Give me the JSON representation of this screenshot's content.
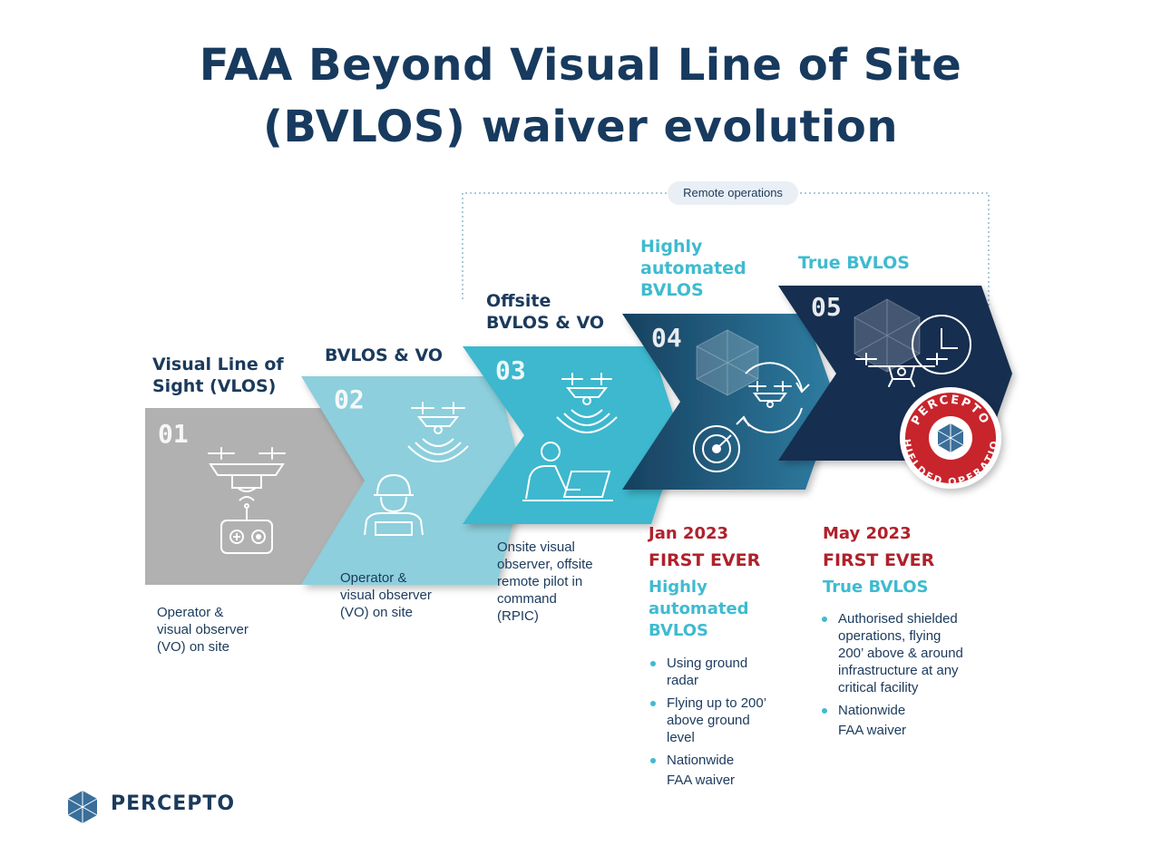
{
  "title": {
    "line1": "FAA Beyond Visual Line of Site",
    "line2": "(BVLOS) waiver evolution"
  },
  "remote_ops_label": "Remote operations",
  "steps": [
    {
      "number": "01",
      "label_lines": [
        "Visual Line of",
        "Sight (VLOS)"
      ],
      "description_lines": [
        "Operator &",
        "visual observer",
        "(VO) on site"
      ],
      "color": "#b1b1b1"
    },
    {
      "number": "02",
      "label_lines": [
        "BVLOS & VO"
      ],
      "description_lines": [
        "Operator &",
        "visual observer",
        "(VO) on site"
      ],
      "color": "#8dcfdc"
    },
    {
      "number": "03",
      "label_lines": [
        "Offsite",
        "BVLOS & VO"
      ],
      "description_lines": [
        "Onsite visual",
        "observer, offsite",
        "remote pilot in",
        "command",
        "(RPIC)"
      ],
      "color": "#3db8ce"
    },
    {
      "number": "04",
      "label_lines": [
        "Highly",
        "automated",
        "BVLOS"
      ],
      "color": "#1e5f86"
    },
    {
      "number": "05",
      "label_lines": [
        "True BVLOS"
      ],
      "color": "#132f4f"
    }
  ],
  "milestones": [
    {
      "date": "Jan 2023",
      "first_ever": "FIRST EVER",
      "subtitle_lines": [
        "Highly",
        "automated",
        "BVLOS"
      ],
      "bullets": [
        {
          "lines": [
            "Using ground",
            "radar"
          ]
        },
        {
          "lines": [
            "Flying up to 200’",
            "above ground",
            "level"
          ]
        },
        {
          "lines": [
            "Nationwide",
            "FAA waiver"
          ]
        }
      ]
    },
    {
      "date": "May 2023",
      "first_ever": "FIRST EVER",
      "subtitle_lines": [
        "True BVLOS"
      ],
      "bullets": [
        {
          "lines": [
            "Authorised shielded",
            "operations, flying",
            "200’ above & around",
            "infrastructure at any",
            "critical facility"
          ]
        },
        {
          "lines": [
            "Nationwide",
            "FAA waiver"
          ]
        }
      ]
    }
  ],
  "badge": {
    "top_text": "PERCEPTO",
    "bottom_text": "SHIELDED OPERATION",
    "color": "#c8242c"
  },
  "brand": {
    "name": "PERCEPTO"
  },
  "icons": [
    "drone-icon",
    "remote-controller-icon",
    "signal-waves-icon",
    "worker-helmet-icon",
    "laptop-operator-icon",
    "radar-icon",
    "cycle-arrows-icon",
    "clock-icon",
    "hex-shield-icon",
    "percepto-logo-icon"
  ]
}
